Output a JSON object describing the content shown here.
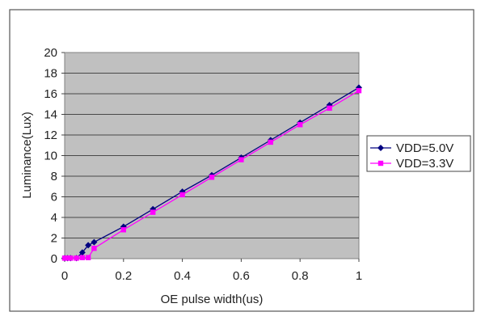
{
  "chart_data": {
    "type": "line",
    "title": "",
    "xlabel": "OE pulse width(us)",
    "ylabel": "Luminance(Lux)",
    "xlim": [
      0,
      1
    ],
    "ylim": [
      0,
      20
    ],
    "x_ticks": [
      "0",
      "0.2",
      "0.4",
      "0.6",
      "0.8",
      "1"
    ],
    "y_ticks": [
      "0",
      "2",
      "4",
      "6",
      "8",
      "10",
      "12",
      "14",
      "16",
      "18",
      "20"
    ],
    "grid": "horizontal",
    "legend_position": "right",
    "plot_background": "#c0c0c0",
    "series": [
      {
        "name": "VDD=5.0V",
        "color": "#000080",
        "marker": "diamond",
        "x": [
          0,
          0.01,
          0.02,
          0.04,
          0.06,
          0.08,
          0.1,
          0.2,
          0.3,
          0.4,
          0.5,
          0.6,
          0.7,
          0.8,
          0.9,
          1.0
        ],
        "y": [
          0.05,
          0.05,
          0.05,
          0.05,
          0.6,
          1.3,
          1.6,
          3.1,
          4.8,
          6.5,
          8.1,
          9.8,
          11.5,
          13.2,
          14.9,
          16.6
        ]
      },
      {
        "name": "VDD=3.3V",
        "color": "#ff00ff",
        "marker": "square",
        "x": [
          0,
          0.01,
          0.02,
          0.04,
          0.06,
          0.08,
          0.1,
          0.2,
          0.3,
          0.4,
          0.5,
          0.6,
          0.7,
          0.8,
          0.9,
          1.0
        ],
        "y": [
          0.05,
          0.05,
          0.05,
          0.05,
          0.1,
          0.1,
          1.0,
          2.8,
          4.5,
          6.2,
          7.9,
          9.6,
          11.3,
          13.0,
          14.6,
          16.3
        ]
      }
    ]
  }
}
